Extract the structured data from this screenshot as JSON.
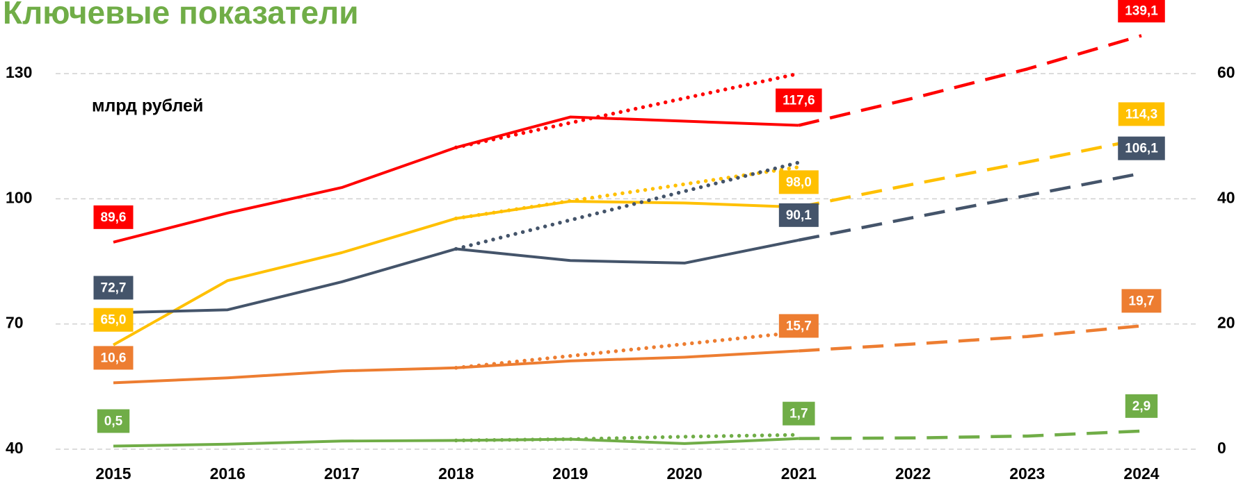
{
  "chart_data": {
    "type": "line",
    "title": "Ключевые показатели",
    "annotation": "млрд рублей",
    "categories": [
      "2015",
      "2016",
      "2017",
      "2018",
      "2019",
      "2020",
      "2021",
      "2022",
      "2023",
      "2024"
    ],
    "ylim": [
      40,
      130
    ],
    "yticks": [
      40,
      70,
      100,
      130
    ],
    "y2lim": [
      0,
      60
    ],
    "y2ticks": [
      0,
      20,
      40,
      60
    ],
    "grid": true,
    "series": [
      {
        "color": "#ff0000",
        "style": "solid",
        "axis": "y",
        "values": [
          89.6,
          96.6,
          102.7,
          112.3,
          119.6,
          118.6,
          117.6,
          null,
          null,
          null
        ],
        "value_labels": [
          "89,6",
          null,
          null,
          null,
          null,
          null,
          "117,6",
          null,
          null,
          null
        ]
      },
      {
        "color": "#ff0000",
        "style": "dashed",
        "axis": "y",
        "values": [
          null,
          null,
          null,
          null,
          null,
          null,
          117.6,
          124.1,
          131.1,
          139.1
        ],
        "value_labels": [
          null,
          null,
          null,
          null,
          null,
          null,
          null,
          null,
          null,
          "139,1"
        ]
      },
      {
        "color": "#ff0000",
        "style": "dotted",
        "axis": "y",
        "values": [
          null,
          null,
          null,
          112.3,
          118.2,
          124.1,
          130.0,
          null,
          null,
          null
        ]
      },
      {
        "color": "#ffc000",
        "style": "solid",
        "axis": "y",
        "values": [
          65.0,
          80.4,
          87.1,
          95.3,
          99.4,
          99.0,
          98.0,
          null,
          null,
          null
        ],
        "value_labels": [
          "65,0",
          null,
          null,
          null,
          null,
          null,
          "98,0",
          null,
          null,
          null
        ]
      },
      {
        "color": "#ffc000",
        "style": "dashed",
        "axis": "y",
        "values": [
          null,
          null,
          null,
          null,
          null,
          null,
          98.0,
          103.5,
          108.8,
          114.3
        ],
        "value_labels": [
          null,
          null,
          null,
          null,
          null,
          null,
          null,
          null,
          null,
          "114,3"
        ]
      },
      {
        "color": "#ffc000",
        "style": "dotted",
        "axis": "y",
        "values": [
          null,
          null,
          null,
          95.3,
          99.5,
          103.5,
          107.6,
          null,
          null,
          null
        ]
      },
      {
        "color": "#44546a",
        "style": "solid",
        "axis": "y",
        "values": [
          72.7,
          73.4,
          80.1,
          88.0,
          85.2,
          84.6,
          90.1,
          null,
          null,
          null
        ],
        "value_labels": [
          "72,7",
          null,
          null,
          null,
          null,
          null,
          "90,1",
          null,
          null,
          null
        ]
      },
      {
        "color": "#44546a",
        "style": "dashed",
        "axis": "y",
        "values": [
          null,
          null,
          null,
          null,
          null,
          null,
          90.1,
          95.5,
          100.8,
          106.1
        ],
        "value_labels": [
          null,
          null,
          null,
          null,
          null,
          null,
          null,
          null,
          null,
          "106,1"
        ]
      },
      {
        "color": "#44546a",
        "style": "dotted",
        "axis": "y",
        "values": [
          null,
          null,
          null,
          88.0,
          94.9,
          101.8,
          108.7,
          null,
          null,
          null
        ]
      },
      {
        "color": "#ed7d31",
        "style": "solid",
        "axis": "y2",
        "values": [
          10.6,
          11.4,
          12.5,
          13.0,
          14.1,
          14.7,
          15.7,
          null,
          null,
          null
        ],
        "value_labels": [
          "10,6",
          null,
          null,
          null,
          null,
          null,
          "15,7",
          null,
          null,
          null
        ]
      },
      {
        "color": "#ed7d31",
        "style": "dashed",
        "axis": "y2",
        "values": [
          null,
          null,
          null,
          null,
          null,
          null,
          15.7,
          16.8,
          18.0,
          19.7
        ],
        "value_labels": [
          null,
          null,
          null,
          null,
          null,
          null,
          null,
          null,
          null,
          "19,7"
        ]
      },
      {
        "color": "#ed7d31",
        "style": "dotted",
        "axis": "y2",
        "values": [
          null,
          null,
          null,
          13.0,
          14.9,
          16.8,
          18.7,
          null,
          null,
          null
        ]
      },
      {
        "color": "#70ad47",
        "style": "solid",
        "axis": "y2",
        "values": [
          0.5,
          0.8,
          1.3,
          1.4,
          1.6,
          0.9,
          1.7,
          null,
          null,
          null
        ],
        "value_labels": [
          "0,5",
          null,
          null,
          null,
          null,
          null,
          "1,7",
          null,
          null,
          null
        ]
      },
      {
        "color": "#70ad47",
        "style": "dashed",
        "axis": "y2",
        "values": [
          null,
          null,
          null,
          null,
          null,
          null,
          1.7,
          1.8,
          2.1,
          2.9
        ],
        "value_labels": [
          null,
          null,
          null,
          null,
          null,
          null,
          null,
          null,
          null,
          "2,9"
        ]
      },
      {
        "color": "#70ad47",
        "style": "dotted",
        "axis": "y2",
        "values": [
          null,
          null,
          null,
          1.4,
          1.6,
          2.0,
          2.3,
          null,
          null,
          null
        ]
      }
    ]
  }
}
